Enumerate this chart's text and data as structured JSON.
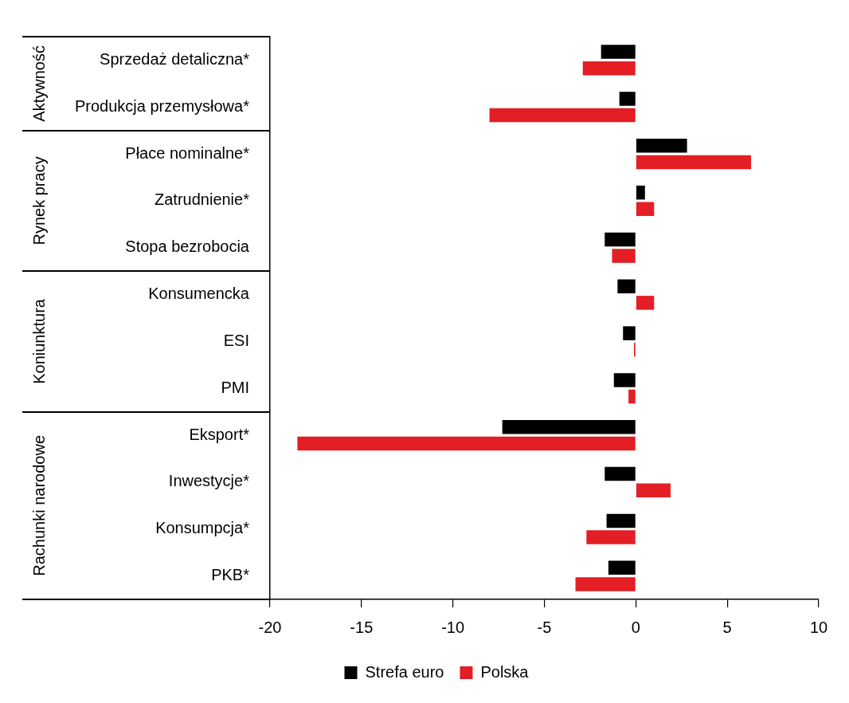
{
  "chart_data": {
    "type": "bar",
    "orientation": "horizontal",
    "categories": [
      "Sprzedaż detaliczna*",
      "Produkcja przemysłowa*",
      "Płace nominalne*",
      "Zatrudnienie*",
      "Stopa bezrobocia",
      "Konsumencka",
      "ESI",
      "PMI",
      "Eksport*",
      "Inwestycje*",
      "Konsumpcja*",
      "PKB*"
    ],
    "series": [
      {
        "name": "Strefa euro",
        "color": "#000000",
        "values": [
          -1.9,
          -0.9,
          2.8,
          0.5,
          -1.7,
          -1.0,
          -0.7,
          -1.2,
          -7.3,
          -1.7,
          -1.6,
          -1.5
        ]
      },
      {
        "name": "Polska",
        "color": "#e31e24",
        "values": [
          -2.9,
          -8.0,
          6.3,
          1.0,
          -1.3,
          1.0,
          -0.1,
          -0.4,
          -18.5,
          1.9,
          -2.7,
          -3.3
        ]
      }
    ],
    "xlim": [
      -20,
      10
    ],
    "xticks": [
      -20,
      -15,
      -10,
      -5,
      0,
      5,
      10
    ],
    "annotations": [
      "Aktywność",
      "Rynek pracy",
      "Koniunktura",
      "Rachunki narodowe"
    ],
    "grid": false,
    "legend": "bottom"
  }
}
